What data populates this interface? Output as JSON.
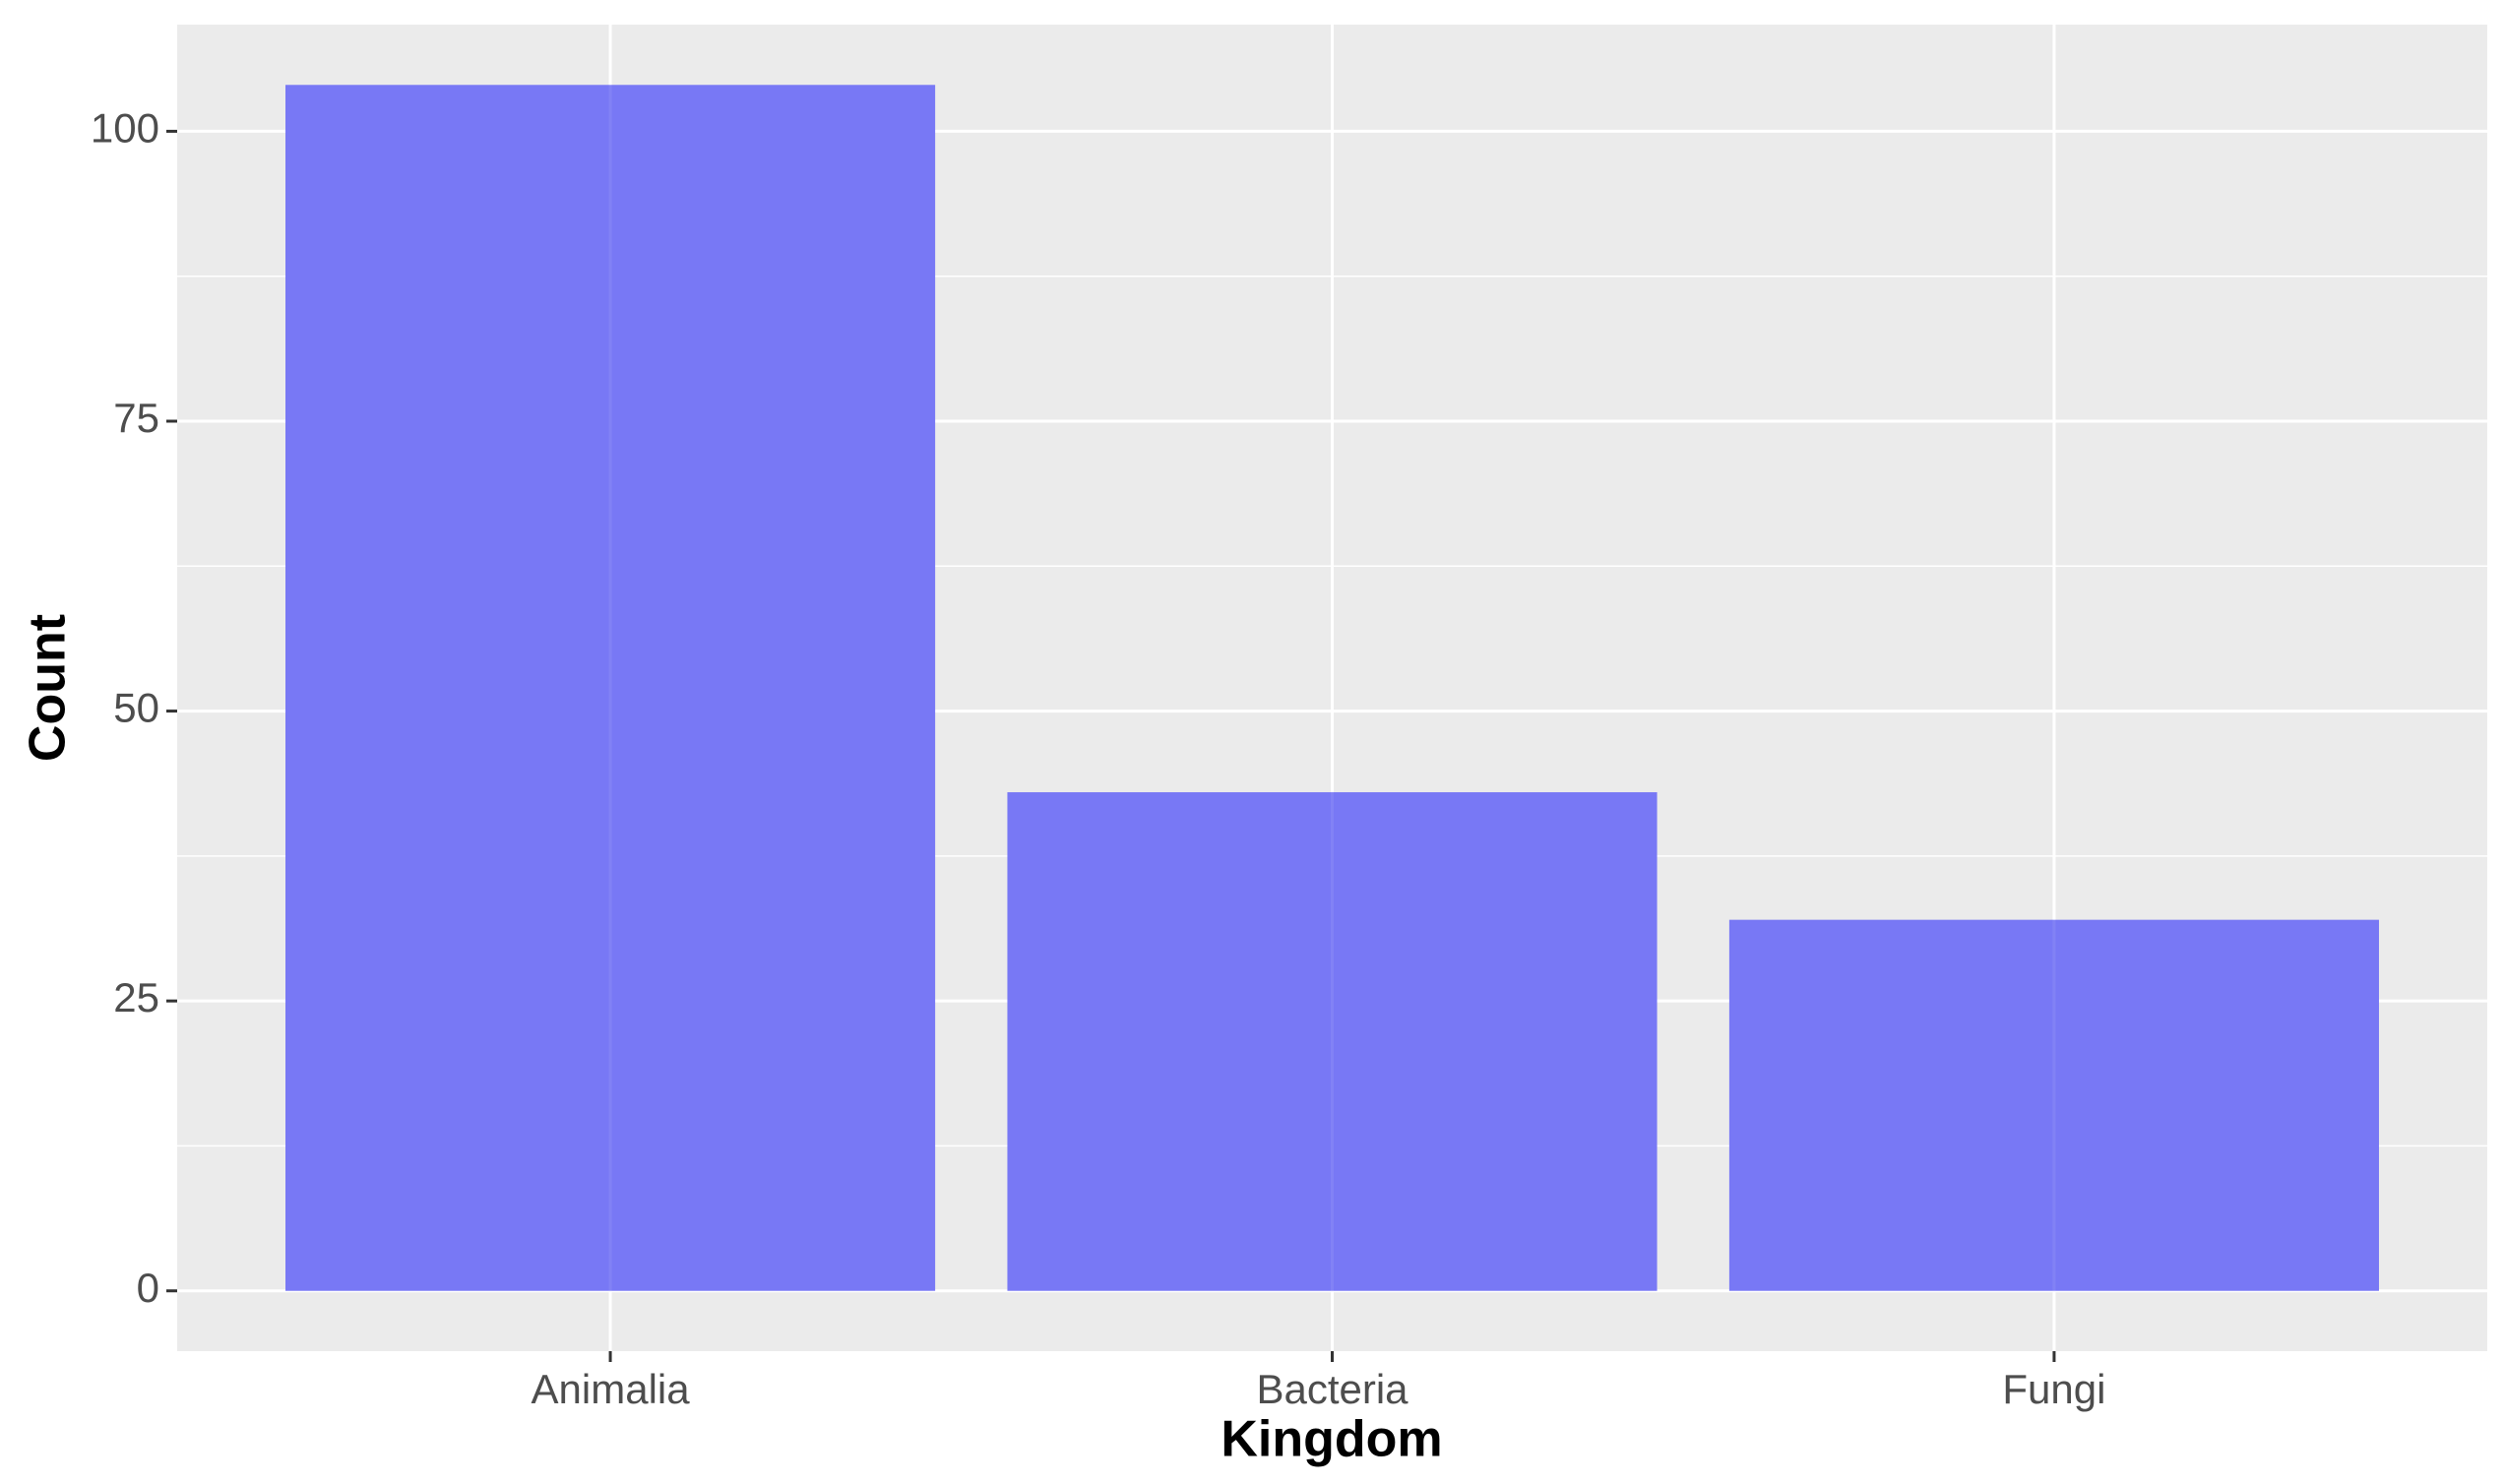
{
  "chart_data": {
    "type": "bar",
    "x_label": "Kingdom",
    "y_label": "Count",
    "categories": [
      "Animalia",
      "Bacteria",
      "Fungi"
    ],
    "values": [
      104,
      43,
      32
    ],
    "color": "#7575f5",
    "ylim": [
      -5.2,
      109.2
    ],
    "yticks": [
      0,
      25,
      50,
      75,
      100
    ],
    "grid": true
  }
}
